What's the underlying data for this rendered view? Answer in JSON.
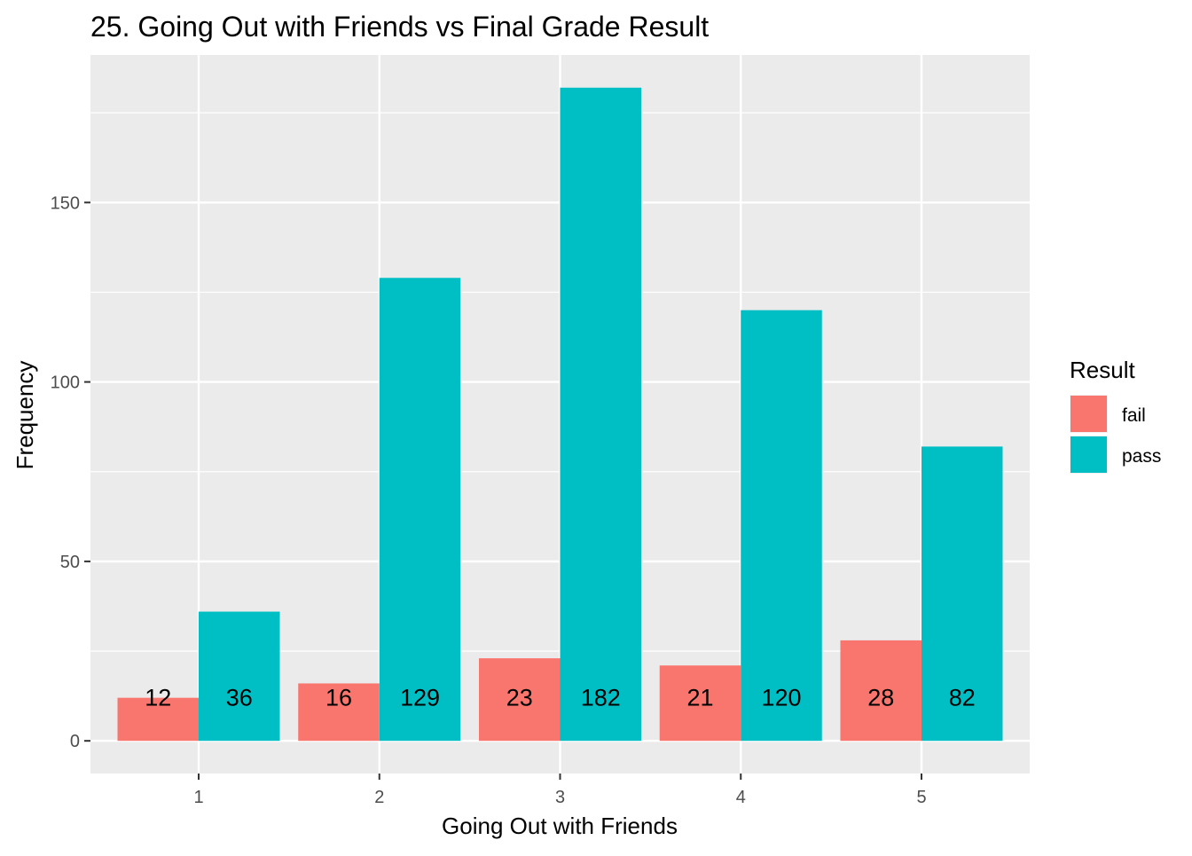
{
  "chart_data": {
    "type": "bar",
    "title": "25. Going Out with Friends vs Final Grade Result",
    "xlabel": "Going Out with Friends",
    "ylabel": "Frequency",
    "categories": [
      "1",
      "2",
      "3",
      "4",
      "5"
    ],
    "series": [
      {
        "name": "fail",
        "color": "#F8766D",
        "values": [
          12,
          16,
          23,
          21,
          28
        ]
      },
      {
        "name": "pass",
        "color": "#00BFC4",
        "values": [
          36,
          129,
          182,
          120,
          82
        ]
      }
    ],
    "ylim": [
      -9.1,
      191.1
    ],
    "yticks": [
      0,
      50,
      100,
      150
    ],
    "grid": true,
    "legend": {
      "title": "Result",
      "position": "right"
    },
    "data_labels": true
  }
}
